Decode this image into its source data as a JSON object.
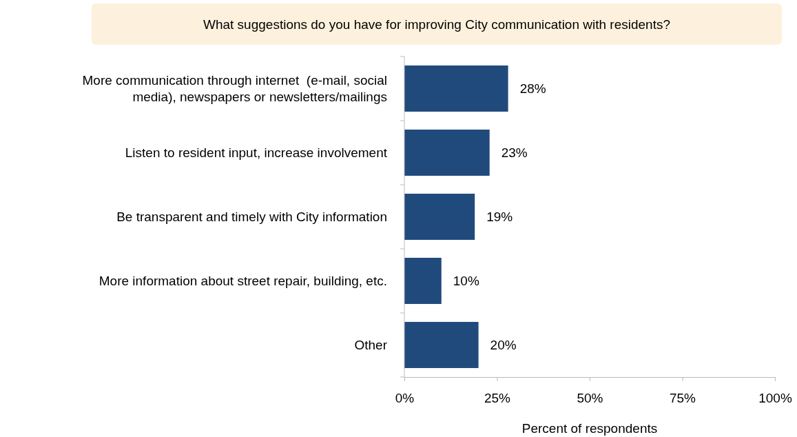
{
  "chart_data": {
    "type": "bar",
    "orientation": "horizontal",
    "title": "What suggestions do you have for improving City communication with residents?",
    "xlabel": "Percent of respondents",
    "categories": [
      "More communication through internet  (e-mail, social media), newspapers or newsletters/mailings",
      "Listen to resident input, increase involvement",
      "Be transparent and timely with City information",
      "More information about street repair, building, etc.",
      "Other"
    ],
    "values": [
      28,
      23,
      19,
      10,
      20
    ],
    "value_labels": [
      "28%",
      "23%",
      "19%",
      "10%",
      "20%"
    ],
    "color": "#214a7c",
    "xlim": [
      0,
      100
    ],
    "xticks": [
      {
        "value": 0,
        "label": "0%"
      },
      {
        "value": 25,
        "label": "25%"
      },
      {
        "value": 50,
        "label": "50%"
      },
      {
        "value": 75,
        "label": "75%"
      },
      {
        "value": 100,
        "label": "100%"
      }
    ],
    "grid": false
  }
}
